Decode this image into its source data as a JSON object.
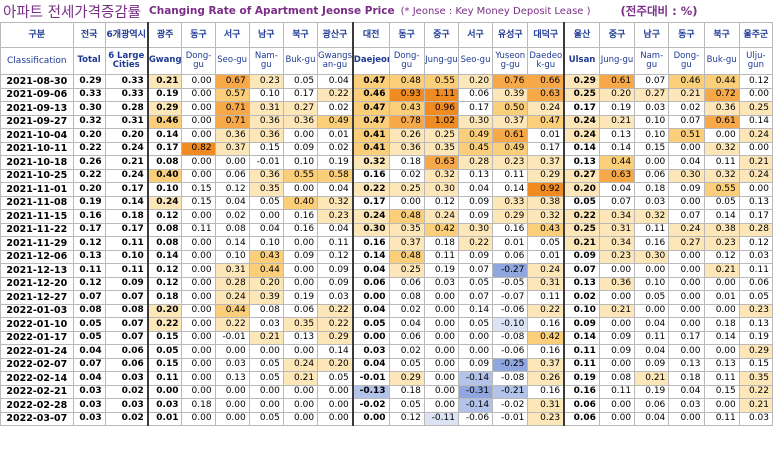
{
  "title": {
    "korean": "아파트 전세가격증감률",
    "english": "Changing Rate of Apartment Jeonse Price",
    "note_star": "(*",
    "note": "Jeonse : Key Money Deposit Lease )",
    "unit": "(전주대비 : %)"
  },
  "header": {
    "classification_ko": "구분",
    "classification_en": "Classification",
    "columns": [
      {
        "key": "total",
        "ko": "전국",
        "en": "Total",
        "bold": true
      },
      {
        "key": "six",
        "ko": "6개광역시",
        "en": "6 Large Cities",
        "bold": true
      },
      {
        "key": "gwangju",
        "ko": "광주",
        "en": "Gwangju",
        "bold": true
      },
      {
        "key": "gw_dong",
        "ko": "동구",
        "en": "Dong-gu"
      },
      {
        "key": "gw_seo",
        "ko": "서구",
        "en": "Seo-gu"
      },
      {
        "key": "gw_nam",
        "ko": "남구",
        "en": "Nam-gu"
      },
      {
        "key": "gw_buk",
        "ko": "북구",
        "en": "Buk-gu"
      },
      {
        "key": "gw_gwangsan",
        "ko": "광산구",
        "en": "Gwangs an-gu"
      },
      {
        "key": "daejeon",
        "ko": "대전",
        "en": "Daejeon",
        "bold": true
      },
      {
        "key": "dj_dong",
        "ko": "동구",
        "en": "Dong-gu"
      },
      {
        "key": "dj_jung",
        "ko": "중구",
        "en": "Jung-gu"
      },
      {
        "key": "dj_seo",
        "ko": "서구",
        "en": "Seo-gu"
      },
      {
        "key": "dj_yuseong",
        "ko": "유성구",
        "en": "Yuseon g-gu"
      },
      {
        "key": "dj_daedeok",
        "ko": "대덕구",
        "en": "Daedeo k-gu"
      },
      {
        "key": "ulsan",
        "ko": "울산",
        "en": "Ulsan",
        "bold": true
      },
      {
        "key": "us_jung",
        "ko": "중구",
        "en": "Jung-gu"
      },
      {
        "key": "us_nam",
        "ko": "남구",
        "en": "Nam-gu"
      },
      {
        "key": "us_dong",
        "ko": "동구",
        "en": "Dong-gu"
      },
      {
        "key": "us_buk",
        "ko": "북구",
        "en": "Buk-gu"
      },
      {
        "key": "us_ulju",
        "ko": "울주군",
        "en": "Ulju-gun"
      }
    ]
  },
  "rows": [
    {
      "date": "2021-08-30",
      "v": [
        "0.29",
        "0.33",
        "0.21",
        "0.00",
        "0.67",
        "0.23",
        "0.05",
        "0.04",
        "0.47",
        "0.48",
        "0.55",
        "0.20",
        "0.76",
        "0.66",
        "0.29",
        "0.61",
        "0.07",
        "0.46",
        "0.44",
        "0.12"
      ]
    },
    {
      "date": "2021-09-06",
      "v": [
        "0.33",
        "0.33",
        "0.19",
        "0.00",
        "0.57",
        "0.10",
        "0.17",
        "0.22",
        "0.46",
        "0.93",
        "1.11",
        "0.06",
        "0.39",
        "0.63",
        "0.25",
        "0.20",
        "0.27",
        "0.21",
        "0.72",
        "0.00"
      ]
    },
    {
      "date": "2021-09-13",
      "v": [
        "0.30",
        "0.28",
        "0.29",
        "0.00",
        "0.71",
        "0.31",
        "0.27",
        "0.02",
        "0.47",
        "0.43",
        "0.96",
        "0.17",
        "0.50",
        "0.24",
        "0.17",
        "0.19",
        "0.03",
        "0.02",
        "0.36",
        "0.25"
      ]
    },
    {
      "date": "2021-09-27",
      "v": [
        "0.32",
        "0.31",
        "0.46",
        "0.00",
        "0.71",
        "0.36",
        "0.36",
        "0.49",
        "0.47",
        "0.78",
        "1.02",
        "0.30",
        "0.37",
        "0.47",
        "0.24",
        "0.21",
        "0.10",
        "0.07",
        "0.61",
        "0.14"
      ]
    },
    {
      "date": "2021-10-04",
      "v": [
        "0.20",
        "0.20",
        "0.14",
        "0.00",
        "0.36",
        "0.36",
        "0.00",
        "0.01",
        "0.41",
        "0.26",
        "0.25",
        "0.49",
        "0.61",
        "0.01",
        "0.24",
        "0.13",
        "0.10",
        "0.51",
        "0.00",
        "0.24"
      ]
    },
    {
      "date": "2021-10-11",
      "v": [
        "0.22",
        "0.24",
        "0.17",
        "0.82",
        "0.37",
        "0.15",
        "0.09",
        "0.02",
        "0.41",
        "0.36",
        "0.35",
        "0.45",
        "0.49",
        "0.17",
        "0.14",
        "0.14",
        "0.15",
        "0.00",
        "0.32",
        "0.00"
      ]
    },
    {
      "date": "2021-10-18",
      "v": [
        "0.26",
        "0.21",
        "0.08",
        "0.00",
        "0.00",
        "-0.01",
        "0.10",
        "0.19",
        "0.32",
        "0.18",
        "0.63",
        "0.28",
        "0.23",
        "0.37",
        "0.13",
        "0.44",
        "0.00",
        "0.04",
        "0.11",
        "0.21"
      ]
    },
    {
      "date": "2021-10-25",
      "v": [
        "0.22",
        "0.24",
        "0.40",
        "0.00",
        "0.06",
        "0.36",
        "0.55",
        "0.58",
        "0.16",
        "0.02",
        "0.32",
        "0.13",
        "0.11",
        "0.29",
        "0.27",
        "0.63",
        "0.06",
        "0.30",
        "0.32",
        "0.24"
      ]
    },
    {
      "date": "2021-11-01",
      "v": [
        "0.20",
        "0.17",
        "0.10",
        "0.15",
        "0.12",
        "0.35",
        "0.00",
        "0.04",
        "0.22",
        "0.25",
        "0.30",
        "0.04",
        "0.14",
        "0.92",
        "0.20",
        "0.04",
        "0.18",
        "0.09",
        "0.55",
        "0.00"
      ]
    },
    {
      "date": "2021-11-08",
      "v": [
        "0.19",
        "0.14",
        "0.24",
        "0.15",
        "0.04",
        "0.05",
        "0.40",
        "0.32",
        "0.17",
        "0.00",
        "0.12",
        "0.09",
        "0.33",
        "0.38",
        "0.05",
        "0.07",
        "0.03",
        "0.00",
        "0.05",
        "0.13"
      ]
    },
    {
      "date": "2021-11-15",
      "v": [
        "0.16",
        "0.18",
        "0.12",
        "0.00",
        "0.02",
        "0.00",
        "0.16",
        "0.23",
        "0.24",
        "0.48",
        "0.24",
        "0.09",
        "0.29",
        "0.32",
        "0.22",
        "0.34",
        "0.32",
        "0.07",
        "0.14",
        "0.17"
      ]
    },
    {
      "date": "2021-11-22",
      "v": [
        "0.17",
        "0.17",
        "0.08",
        "0.11",
        "0.08",
        "0.04",
        "0.16",
        "0.04",
        "0.30",
        "0.35",
        "0.42",
        "0.30",
        "0.16",
        "0.43",
        "0.25",
        "0.31",
        "0.11",
        "0.24",
        "0.38",
        "0.28"
      ]
    },
    {
      "date": "2021-11-29",
      "v": [
        "0.12",
        "0.11",
        "0.08",
        "0.00",
        "0.14",
        "0.10",
        "0.00",
        "0.11",
        "0.16",
        "0.37",
        "0.18",
        "0.22",
        "0.01",
        "0.05",
        "0.21",
        "0.34",
        "0.16",
        "0.27",
        "0.23",
        "0.12"
      ]
    },
    {
      "date": "2021-12-06",
      "v": [
        "0.13",
        "0.10",
        "0.14",
        "0.00",
        "0.10",
        "0.43",
        "0.09",
        "0.12",
        "0.14",
        "0.48",
        "0.11",
        "0.09",
        "0.06",
        "0.01",
        "0.09",
        "0.23",
        "0.30",
        "0.00",
        "0.12",
        "0.03"
      ]
    },
    {
      "date": "2021-12-13",
      "v": [
        "0.11",
        "0.11",
        "0.12",
        "0.00",
        "0.31",
        "0.44",
        "0.00",
        "0.09",
        "0.04",
        "0.25",
        "0.19",
        "0.07",
        "-0.27",
        "0.24",
        "0.07",
        "0.00",
        "0.00",
        "0.00",
        "0.21",
        "0.11"
      ]
    },
    {
      "date": "2021-12-20",
      "v": [
        "0.12",
        "0.09",
        "0.12",
        "0.00",
        "0.28",
        "0.20",
        "0.00",
        "0.09",
        "0.06",
        "0.06",
        "0.03",
        "0.05",
        "-0.05",
        "0.31",
        "0.13",
        "0.36",
        "0.10",
        "0.00",
        "0.00",
        "0.06"
      ]
    },
    {
      "date": "2021-12-27",
      "v": [
        "0.07",
        "0.07",
        "0.18",
        "0.00",
        "0.24",
        "0.39",
        "0.19",
        "0.03",
        "0.00",
        "0.08",
        "0.00",
        "0.07",
        "-0.07",
        "0.11",
        "0.02",
        "0.00",
        "0.05",
        "0.00",
        "0.01",
        "0.05"
      ]
    },
    {
      "date": "2022-01-03",
      "v": [
        "0.08",
        "0.08",
        "0.20",
        "0.00",
        "0.44",
        "0.08",
        "0.06",
        "0.22",
        "0.04",
        "0.02",
        "0.00",
        "0.14",
        "-0.06",
        "0.22",
        "0.10",
        "0.21",
        "0.00",
        "0.00",
        "0.00",
        "0.23"
      ]
    },
    {
      "date": "2022-01-10",
      "v": [
        "0.05",
        "0.07",
        "0.22",
        "0.00",
        "0.22",
        "0.03",
        "0.35",
        "0.22",
        "0.05",
        "0.04",
        "0.00",
        "0.05",
        "-0.10",
        "0.16",
        "0.09",
        "0.00",
        "0.04",
        "0.00",
        "0.18",
        "0.13"
      ]
    },
    {
      "date": "2022-01-17",
      "v": [
        "0.05",
        "0.07",
        "0.15",
        "0.00",
        "-0.01",
        "0.21",
        "0.13",
        "0.29",
        "0.00",
        "0.06",
        "0.00",
        "0.00",
        "-0.08",
        "0.42",
        "0.14",
        "0.09",
        "0.11",
        "0.17",
        "0.14",
        "0.19"
      ]
    },
    {
      "date": "2022-01-24",
      "v": [
        "0.04",
        "0.06",
        "0.05",
        "0.00",
        "0.00",
        "0.00",
        "0.00",
        "0.14",
        "0.03",
        "0.02",
        "0.00",
        "0.00",
        "-0.06",
        "0.16",
        "0.11",
        "0.09",
        "0.04",
        "0.00",
        "0.00",
        "0.29"
      ]
    },
    {
      "date": "2022-02-07",
      "v": [
        "0.07",
        "0.06",
        "0.15",
        "0.00",
        "0.03",
        "0.05",
        "0.24",
        "0.20",
        "0.04",
        "0.05",
        "0.00",
        "0.09",
        "-0.25",
        "0.37",
        "0.11",
        "0.00",
        "0.09",
        "0.13",
        "0.13",
        "0.15"
      ]
    },
    {
      "date": "2022-02-14",
      "v": [
        "0.04",
        "0.03",
        "0.11",
        "0.00",
        "0.13",
        "0.05",
        "0.21",
        "0.05",
        "-0.01",
        "0.29",
        "0.00",
        "-0.14",
        "-0.08",
        "0.26",
        "0.19",
        "0.08",
        "0.21",
        "0.18",
        "0.11",
        "0.35"
      ]
    },
    {
      "date": "2022-02-21",
      "v": [
        "0.03",
        "0.02",
        "0.00",
        "0.00",
        "0.00",
        "0.00",
        "0.00",
        "0.00",
        "-0.13",
        "0.18",
        "0.00",
        "-0.31",
        "-0.21",
        "0.16",
        "0.16",
        "0.11",
        "0.19",
        "0.04",
        "0.15",
        "0.22"
      ]
    },
    {
      "date": "2022-02-28",
      "v": [
        "0.03",
        "0.03",
        "0.03",
        "0.18",
        "0.00",
        "0.00",
        "0.00",
        "0.00",
        "-0.02",
        "0.05",
        "0.00",
        "-0.14",
        "-0.02",
        "0.31",
        "0.06",
        "0.00",
        "0.06",
        "0.03",
        "0.00",
        "0.21"
      ]
    },
    {
      "date": "2022-03-07",
      "v": [
        "0.03",
        "0.02",
        "0.01",
        "0.00",
        "0.00",
        "0.05",
        "0.00",
        "0.00",
        "0.00",
        "0.12",
        "-0.11",
        "-0.06",
        "-0.01",
        "0.23",
        "0.06",
        "0.00",
        "0.04",
        "0.00",
        "0.11",
        "0.03"
      ]
    }
  ]
}
